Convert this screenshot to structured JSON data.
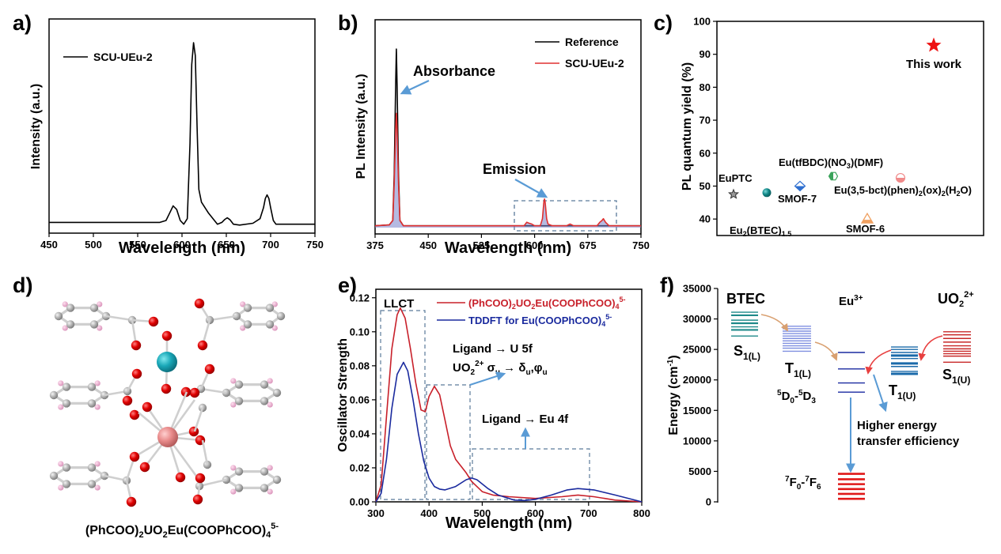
{
  "figure": {
    "panel_labels": [
      "a)",
      "b)",
      "c)",
      "d)",
      "e)",
      "f)"
    ]
  },
  "chart_data": [
    {
      "panel": "a",
      "type": "line",
      "title": "",
      "xlabel": "Wavelength (nm)",
      "ylabel": "Intensity (a.u.)",
      "xlim": [
        450,
        750
      ],
      "ylim": [
        0,
        1
      ],
      "xticks": [
        450,
        500,
        550,
        600,
        650,
        700,
        750
      ],
      "yticks": [],
      "legend": {
        "placement": "top-left",
        "entries": [
          "SCU-UEu-2"
        ]
      },
      "grid": false,
      "series": [
        {
          "name": "SCU-UEu-2",
          "color": "#000000",
          "x": [
            450,
            500,
            550,
            575,
            582,
            586,
            590,
            594,
            598,
            602,
            606,
            609,
            611,
            613,
            615,
            617,
            619,
            622,
            630,
            640,
            645,
            648,
            651,
            654,
            658,
            665,
            680,
            688,
            692,
            694,
            696,
            698,
            700,
            703,
            706,
            715,
            750
          ],
          "y": [
            0.02,
            0.02,
            0.02,
            0.02,
            0.03,
            0.07,
            0.11,
            0.09,
            0.03,
            0.01,
            0.04,
            0.45,
            0.88,
            1.0,
            0.93,
            0.55,
            0.2,
            0.13,
            0.07,
            0.01,
            0.02,
            0.035,
            0.045,
            0.035,
            0.01,
            0.005,
            0.015,
            0.04,
            0.1,
            0.15,
            0.17,
            0.15,
            0.1,
            0.03,
            0.01,
            0.01,
            0.01
          ]
        }
      ]
    },
    {
      "panel": "b",
      "type": "line",
      "title": "",
      "xlabel": "Wavelength (nm)",
      "ylabel": "PL Intensity (a.u.)",
      "xlim": [
        375,
        750
      ],
      "ylim": [
        0,
        1
      ],
      "xticks": [
        375,
        450,
        525,
        600,
        675,
        750
      ],
      "yticks": [],
      "legend": {
        "placement": "top-right",
        "entries": [
          "Reference",
          "SCU-UEu-2"
        ]
      },
      "grid": false,
      "annotations": [
        "Absorbance",
        "Emission"
      ],
      "series": [
        {
          "name": "Reference",
          "color": "#000000",
          "x": [
            375,
            395,
            400,
            402,
            404,
            405,
            406,
            408,
            410,
            415,
            750
          ],
          "y": [
            0.01,
            0.015,
            0.04,
            0.3,
            0.8,
            1.0,
            0.8,
            0.3,
            0.04,
            0.01,
            0.01
          ]
        },
        {
          "name": "SCU-UEu-2",
          "color": "#e03030",
          "x": [
            375,
            395,
            400,
            402,
            404,
            405,
            406,
            408,
            410,
            415,
            585,
            589,
            592,
            596,
            600,
            608,
            611,
            613,
            614,
            615,
            617,
            619,
            625,
            645,
            650,
            655,
            688,
            692,
            695,
            697,
            700,
            705,
            750
          ],
          "y": [
            0.01,
            0.015,
            0.04,
            0.25,
            0.55,
            0.64,
            0.55,
            0.25,
            0.04,
            0.01,
            0.01,
            0.03,
            0.025,
            0.02,
            0.01,
            0.01,
            0.05,
            0.14,
            0.16,
            0.14,
            0.05,
            0.02,
            0.01,
            0.01,
            0.02,
            0.01,
            0.01,
            0.03,
            0.04,
            0.05,
            0.03,
            0.01,
            0.01
          ]
        }
      ]
    },
    {
      "panel": "c",
      "type": "scatter",
      "title": "",
      "xlabel": "",
      "ylabel": "PL quantum yield (%)",
      "ylim": [
        35,
        100
      ],
      "yticks": [
        40,
        50,
        60,
        70,
        80,
        90,
        100
      ],
      "grid": false,
      "points": [
        {
          "label": "EuPTC",
          "y": 47.5,
          "marker": "star-outline",
          "color": "#555555"
        },
        {
          "label": "Eu2(BTEC)1.5",
          "y": 48,
          "marker": "sphere",
          "color": "#138a8a"
        },
        {
          "label": "SMOF-7",
          "y": 50,
          "marker": "diamond",
          "color": "#2e6fd0"
        },
        {
          "label": "Eu(tfBDC)(NO3)(DMF)",
          "y": 53,
          "marker": "hexagon",
          "color": "#3aa35a"
        },
        {
          "label": "SMOF-6",
          "y": 40,
          "marker": "triangle",
          "color": "#f0a060"
        },
        {
          "label": "Eu(3,5-bct)(phen)2(ox)2(H2O)",
          "y": 52.5,
          "marker": "circle-half",
          "color": "#f08a8a"
        },
        {
          "label": "This work",
          "y": 92.7,
          "marker": "star",
          "color": "#ee1111"
        }
      ]
    },
    {
      "panel": "e",
      "type": "line",
      "title": "",
      "xlabel": "Wavelength (nm)",
      "ylabel": "Oscillator Strength",
      "xlim": [
        300,
        800
      ],
      "ylim": [
        0,
        0.125
      ],
      "xticks": [
        300,
        400,
        500,
        600,
        700,
        800
      ],
      "yticks": [
        0.0,
        0.02,
        0.04,
        0.06,
        0.08,
        0.1,
        0.12
      ],
      "legend": {
        "placement": "top-right",
        "entries": [
          "(PhCOO)2UO2Eu(COOPhCOO)4 5-",
          "TDDFT for Eu(COOPhCOO)4 5-"
        ]
      },
      "grid": false,
      "annotations": [
        "LLCT",
        "Ligand → U 5f",
        "UO2 2+ σu → δu,φu",
        "Ligand → Eu 4f"
      ],
      "series": [
        {
          "name": "(PhCOO)2UO2Eu(COOPhCOO)4 5-",
          "color": "#c8202a",
          "x": [
            300,
            310,
            320,
            330,
            340,
            346,
            355,
            365,
            375,
            385,
            393,
            400,
            410,
            420,
            430,
            440,
            450,
            460,
            470,
            480,
            500,
            520,
            550,
            600,
            650,
            680,
            710,
            750,
            800
          ],
          "y": [
            0.0,
            0.01,
            0.05,
            0.09,
            0.11,
            0.114,
            0.108,
            0.09,
            0.07,
            0.054,
            0.053,
            0.062,
            0.068,
            0.063,
            0.048,
            0.033,
            0.025,
            0.021,
            0.017,
            0.012,
            0.006,
            0.004,
            0.003,
            0.002,
            0.003,
            0.004,
            0.003,
            0.001,
            0.0
          ]
        },
        {
          "name": "TDDFT for Eu(COOPhCOO)4 5-",
          "color": "#1a2a9e",
          "x": [
            300,
            310,
            320,
            330,
            340,
            352,
            360,
            370,
            380,
            390,
            400,
            410,
            420,
            430,
            450,
            470,
            480,
            490,
            510,
            530,
            560,
            580,
            600,
            630,
            660,
            680,
            710,
            750,
            800
          ],
          "y": [
            0.0,
            0.005,
            0.025,
            0.055,
            0.075,
            0.082,
            0.077,
            0.06,
            0.04,
            0.024,
            0.014,
            0.009,
            0.0075,
            0.007,
            0.009,
            0.013,
            0.014,
            0.013,
            0.008,
            0.004,
            0.001,
            0.0008,
            0.0015,
            0.004,
            0.007,
            0.0078,
            0.007,
            0.004,
            0.0
          ]
        }
      ]
    },
    {
      "panel": "f",
      "type": "diagram",
      "title": "",
      "ylabel": "Energy (cm-1)",
      "ylim": [
        0,
        35000
      ],
      "yticks": [
        0,
        5000,
        10000,
        15000,
        20000,
        25000,
        30000,
        35000
      ],
      "grid": false,
      "columns": [
        {
          "header": "BTEC",
          "state": "S1(L)",
          "color": "#1f8a8a",
          "levels": [
            27200,
            28200,
            28700,
            29300,
            29800,
            30600,
            31100
          ]
        },
        {
          "header": "",
          "state": "T1(L)",
          "color": "#7f8fe0",
          "levels": [
            24700,
            25200,
            25600,
            26000,
            26400,
            26800,
            27200,
            27600,
            28000,
            28400,
            28800
          ]
        },
        {
          "header": "Eu3+",
          "state": "5D0-5D3",
          "color": "#1a2aa0",
          "levels": [
            18000,
            19500,
            21800,
            24500
          ]
        },
        {
          "header": "Eu3+",
          "state": "7F0-7F6",
          "color": "#e01818",
          "levels": [
            500,
            1300,
            2100,
            2900,
            3700,
            4600
          ]
        },
        {
          "header": "",
          "state": "T1(U)",
          "color": "#1a6aaa",
          "levels": [
            21000,
            21400,
            22200,
            22700,
            23500,
            24000,
            24500,
            25000,
            25400
          ]
        },
        {
          "header": "UO2 2+",
          "state": "S1(U)",
          "color": "#c82828",
          "levels": [
            22900,
            23900,
            24300,
            24700,
            25100,
            25600,
            26200,
            26800,
            27400,
            27900
          ]
        }
      ],
      "annotations": [
        "Higher energy",
        "transfer efficiency"
      ]
    }
  ],
  "panel_a": {
    "xlabel": "Wavelength (nm)",
    "ylabel": "Intensity (a.u.)",
    "legend": "SCU-UEu-2",
    "xticks": [
      "450",
      "500",
      "550",
      "600",
      "650",
      "700",
      "750"
    ]
  },
  "panel_b": {
    "xlabel": "Wavelength (nm)",
    "ylabel": "PL Intensity (a.u.)",
    "legend": [
      "Reference",
      "SCU-UEu-2"
    ],
    "absorbance": "Absorbance",
    "emission": "Emission",
    "xticks": [
      "375",
      "450",
      "525",
      "600",
      "675",
      "750"
    ]
  },
  "panel_c": {
    "ylabel": "PL quantum yield (%)",
    "yticks": [
      "40",
      "50",
      "60",
      "70",
      "80",
      "90",
      "100"
    ],
    "labels": {
      "eupt": "EuPTC",
      "btec_main": "Eu",
      "btec_sub1": "2",
      "btec_mid": "(BTEC)",
      "btec_sub2": "1.5",
      "smof7": "SMOF-7",
      "tfbdc_a": "Eu(tfBDC)(NO",
      "tfbdc_sub": "3",
      "tfbdc_b": ")(DMF)",
      "bct_a": "Eu(3,5-bct)(phen)",
      "bct_s1": "2",
      "bct_b": "(ox)",
      "bct_s2": "2",
      "bct_c": "(H",
      "bct_s3": "2",
      "bct_d": "O)",
      "smof6": "SMOF-6",
      "thiswork": "This work"
    }
  },
  "panel_d": {
    "caption_a": "(PhCOO)",
    "caption_s1": "2",
    "caption_b": "UO",
    "caption_s2": "2",
    "caption_c": "Eu(COOPhCOO)",
    "caption_s3": "4",
    "caption_sup": "5-"
  },
  "panel_e": {
    "xlabel": "Wavelength (nm)",
    "ylabel": "Oscillator Strength",
    "xticks": [
      "300",
      "400",
      "500",
      "600",
      "700",
      "800"
    ],
    "yticks": [
      "0.00",
      "0.02",
      "0.04",
      "0.06",
      "0.08",
      "0.10",
      "0.12"
    ],
    "llct": "LLCT",
    "legend1_a": "(PhCOO)",
    "legend1_s1": "2",
    "legend1_b": "UO",
    "legend1_s2": "2",
    "legend1_c": "Eu(COOPhCOO)",
    "legend1_s3": "4",
    "legend1_sup": "5-",
    "legend2_a": "TDDFT for Eu(COOPhCOO)",
    "legend2_s": "4",
    "legend2_sup": "5-",
    "u5f": "Ligand → U 5f",
    "uo2_a": "UO",
    "uo2_s": "2",
    "uo2_sup": "2+",
    "uo2_b": " σ",
    "uo2_su": "u",
    "uo2_c": " → δ",
    "uo2_su2": "u",
    "uo2_d": ",φ",
    "uo2_su3": "u",
    "eu4f": "Ligand → Eu 4f"
  },
  "panel_f": {
    "ylabel_a": "Energy (cm",
    "ylabel_sup": "-1",
    "ylabel_b": ")",
    "yticks": [
      "0",
      "5000",
      "10000",
      "15000",
      "20000",
      "25000",
      "30000",
      "35000"
    ],
    "btec": "BTEC",
    "eu_a": "Eu",
    "eu_sup": "3+",
    "uo2_a": "UO",
    "uo2_sub": "2",
    "uo2_sup": "2+",
    "s1l": "S",
    "s1l_sub": "1(L)",
    "t1l": "T",
    "t1l_sub": "1(L)",
    "t1u": "T",
    "t1u_sub": "1(U)",
    "s1u": "S",
    "s1u_sub": "1(U)",
    "d_sup1": "5",
    "d_a": "D",
    "d_sub1": "0",
    "d_b": "-",
    "d_sup2": "5",
    "d_c": "D",
    "d_sub2": "3",
    "f_sup1": "7",
    "f_a": "F",
    "f_sub1": "0",
    "f_b": "-",
    "f_sup2": "7",
    "f_c": "F",
    "f_sub2": "6",
    "higher1": "Higher energy",
    "higher2": "transfer efficiency"
  }
}
